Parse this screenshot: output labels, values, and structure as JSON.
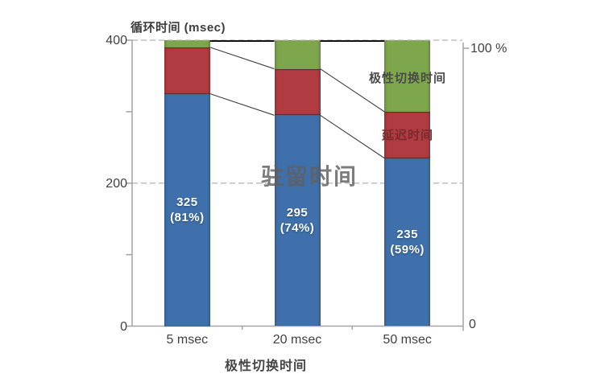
{
  "title": "循环时间 (msec)",
  "y_axis": {
    "tick_labels": [
      {
        "value": 0,
        "label": "0"
      },
      {
        "value": 200,
        "label": "200"
      },
      {
        "value": 400,
        "label": "400"
      }
    ],
    "minor_ticks": [
      100,
      300
    ]
  },
  "y2_axis": {
    "top_label": "100 %",
    "bottom_label": "0"
  },
  "x_axis": {
    "title": "极性切换时间",
    "categories": [
      "5 msec",
      "20 msec",
      "50 msec"
    ]
  },
  "annotations": {
    "dwell": "驻留时间",
    "delay": "延迟时间",
    "switch": "极性切换时间"
  },
  "colors": {
    "dwell_blue": "#3f70ab",
    "delay_red": "#b03b40",
    "switch_green": "#7ea64d",
    "gridline": "#b3b3b3",
    "axis": "#a3a3a3",
    "connector": "#3f3f3f",
    "top_line": "#111111"
  },
  "chart_data": {
    "type": "bar",
    "subtype": "stacked",
    "title": "循环时间 (msec)",
    "xlabel": "极性切换时间",
    "ylabel": "循环时间 (msec)",
    "y2label": "%",
    "ylim": [
      0,
      400
    ],
    "y2lim": [
      0,
      100
    ],
    "grid": "dashed horizontal at 200 and 400",
    "legend_position": "inline annotations on segments",
    "categories": [
      "5 msec",
      "20 msec",
      "50 msec"
    ],
    "totals": [
      400,
      400,
      400
    ],
    "series": [
      {
        "key": "dwell",
        "name": "驻留时间",
        "color": "#3f70ab",
        "values": [
          325,
          295,
          235
        ],
        "data_labels": [
          {
            "value": "325",
            "percent": "(81%)"
          },
          {
            "value": "295",
            "percent": "(74%)"
          },
          {
            "value": "235",
            "percent": "(59%)"
          }
        ]
      },
      {
        "key": "delay",
        "name": "延迟时间",
        "color": "#b03b40",
        "values": [
          65,
          65,
          65
        ]
      },
      {
        "key": "switch",
        "name": "极性切换时间",
        "color": "#7ea64d",
        "values": [
          10,
          40,
          100
        ]
      }
    ],
    "connectors": "thin lines join segment boundaries of adjacent bars; solid black line joins bar tops at 400"
  }
}
